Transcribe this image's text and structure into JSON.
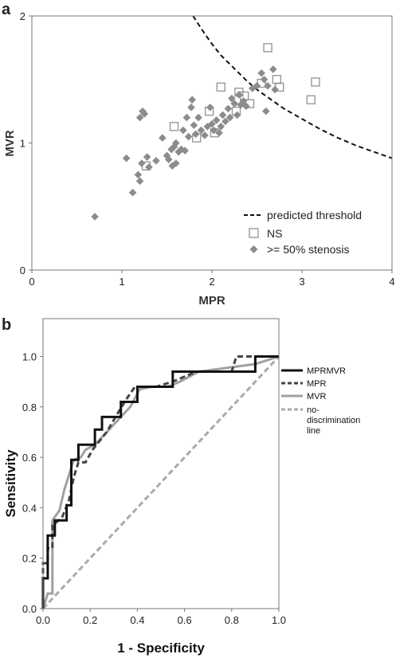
{
  "panel_a": {
    "letter": "a"
  },
  "panel_b": {
    "letter": "b"
  },
  "chart_data": [
    {
      "type": "scatter",
      "title": "",
      "xlabel": "MPR",
      "ylabel": "MVR",
      "xlim": [
        0,
        4
      ],
      "ylim": [
        0,
        2
      ],
      "xticks": [
        "0",
        "1",
        "2",
        "3",
        "4"
      ],
      "yticks": [
        "0",
        "1",
        "2"
      ],
      "grid": false,
      "legend_position": "bottom-right",
      "colors": {
        "ns": "#999999",
        "stenosis": "#8c8c8c",
        "threshold": "#111111"
      },
      "series": [
        {
          "name": "predicted threshold",
          "kind": "dashed-line",
          "points": [
            [
              1.79,
              2.0
            ],
            [
              1.9,
              1.88
            ],
            [
              2.0,
              1.78
            ],
            [
              2.1,
              1.69
            ],
            [
              2.2,
              1.62
            ],
            [
              2.3,
              1.55
            ],
            [
              2.4,
              1.48
            ],
            [
              2.5,
              1.42
            ],
            [
              2.6,
              1.37
            ],
            [
              2.7,
              1.32
            ],
            [
              2.8,
              1.27
            ],
            [
              3.0,
              1.19
            ],
            [
              3.2,
              1.11
            ],
            [
              3.4,
              1.04
            ],
            [
              3.6,
              0.98
            ],
            [
              3.8,
              0.93
            ],
            [
              4.0,
              0.88
            ]
          ]
        },
        {
          "name": "NS",
          "kind": "open-square",
          "points": [
            [
              1.27,
              0.82
            ],
            [
              1.58,
              1.13
            ],
            [
              1.83,
              1.04
            ],
            [
              1.97,
              1.25
            ],
            [
              2.03,
              1.08
            ],
            [
              2.1,
              1.44
            ],
            [
              2.27,
              1.25
            ],
            [
              2.3,
              1.4
            ],
            [
              2.36,
              1.37
            ],
            [
              2.42,
              1.31
            ],
            [
              2.55,
              1.47
            ],
            [
              2.62,
              1.75
            ],
            [
              2.72,
              1.5
            ],
            [
              2.75,
              1.44
            ],
            [
              3.1,
              1.34
            ],
            [
              3.15,
              1.48
            ]
          ]
        },
        {
          "name": ">= 50% stenosis",
          "kind": "filled-diamond",
          "points": [
            [
              0.7,
              0.42
            ],
            [
              1.05,
              0.88
            ],
            [
              1.12,
              0.61
            ],
            [
              1.18,
              0.75
            ],
            [
              1.2,
              0.7
            ],
            [
              1.22,
              0.84
            ],
            [
              1.28,
              0.89
            ],
            [
              1.3,
              0.81
            ],
            [
              1.2,
              1.2
            ],
            [
              1.23,
              1.25
            ],
            [
              1.25,
              1.23
            ],
            [
              1.38,
              0.86
            ],
            [
              1.45,
              1.04
            ],
            [
              1.5,
              0.9
            ],
            [
              1.52,
              0.87
            ],
            [
              1.55,
              0.95
            ],
            [
              1.56,
              0.82
            ],
            [
              1.58,
              0.97
            ],
            [
              1.6,
              1.0
            ],
            [
              1.6,
              0.84
            ],
            [
              1.63,
              0.93
            ],
            [
              1.66,
              0.95
            ],
            [
              1.68,
              1.1
            ],
            [
              1.7,
              0.94
            ],
            [
              1.72,
              1.2
            ],
            [
              1.74,
              1.05
            ],
            [
              1.77,
              1.28
            ],
            [
              1.78,
              1.34
            ],
            [
              1.8,
              1.14
            ],
            [
              1.82,
              1.07
            ],
            [
              1.85,
              1.2
            ],
            [
              1.88,
              1.1
            ],
            [
              1.92,
              1.06
            ],
            [
              1.95,
              1.13
            ],
            [
              1.98,
              1.28
            ],
            [
              2.0,
              1.15
            ],
            [
              2.02,
              1.1
            ],
            [
              2.05,
              1.18
            ],
            [
              2.08,
              1.08
            ],
            [
              2.1,
              1.13
            ],
            [
              2.12,
              1.22
            ],
            [
              2.15,
              1.17
            ],
            [
              2.18,
              1.27
            ],
            [
              2.2,
              1.2
            ],
            [
              2.22,
              1.35
            ],
            [
              2.25,
              1.31
            ],
            [
              2.28,
              1.22
            ],
            [
              2.3,
              1.38
            ],
            [
              2.32,
              1.3
            ],
            [
              2.35,
              1.33
            ],
            [
              2.38,
              1.29
            ],
            [
              2.45,
              1.43
            ],
            [
              2.5,
              1.45
            ],
            [
              2.55,
              1.55
            ],
            [
              2.58,
              1.5
            ],
            [
              2.6,
              1.25
            ],
            [
              2.62,
              1.45
            ],
            [
              2.68,
              1.58
            ],
            [
              2.7,
              1.42
            ]
          ]
        }
      ]
    },
    {
      "type": "line",
      "title": "",
      "xlabel": "1 - Specificity",
      "ylabel": "Sensitivity",
      "xlim": [
        0,
        1
      ],
      "ylim": [
        0,
        1.15
      ],
      "xticks": [
        "0.0",
        "0.2",
        "0.4",
        "0.6",
        "0.8",
        "1.0"
      ],
      "yticks": [
        "0.0",
        "0.2",
        "0.4",
        "0.6",
        "0.8",
        "1.0"
      ],
      "grid": false,
      "legend_position": "right",
      "colors": {
        "MPRMVR": "#111111",
        "MPR": "#444444",
        "MVR": "#a0a0a0",
        "no-discrimination line": "#aaaaaa"
      },
      "series": [
        {
          "name": "MPRMVR",
          "style": "solid",
          "points": [
            [
              0,
              0
            ],
            [
              0,
              0.12
            ],
            [
              0.02,
              0.12
            ],
            [
              0.02,
              0.29
            ],
            [
              0.05,
              0.29
            ],
            [
              0.05,
              0.35
            ],
            [
              0.1,
              0.35
            ],
            [
              0.1,
              0.41
            ],
            [
              0.12,
              0.41
            ],
            [
              0.12,
              0.59
            ],
            [
              0.15,
              0.59
            ],
            [
              0.15,
              0.65
            ],
            [
              0.22,
              0.65
            ],
            [
              0.22,
              0.71
            ],
            [
              0.25,
              0.71
            ],
            [
              0.25,
              0.76
            ],
            [
              0.33,
              0.76
            ],
            [
              0.33,
              0.82
            ],
            [
              0.4,
              0.82
            ],
            [
              0.4,
              0.88
            ],
            [
              0.55,
              0.88
            ],
            [
              0.55,
              0.94
            ],
            [
              0.9,
              0.94
            ],
            [
              0.9,
              1.0
            ],
            [
              1.0,
              1.0
            ]
          ]
        },
        {
          "name": "MPR",
          "style": "dashed",
          "points": [
            [
              0,
              0
            ],
            [
              0,
              0.18
            ],
            [
              0.02,
              0.18
            ],
            [
              0.02,
              0.24
            ],
            [
              0.04,
              0.24
            ],
            [
              0.04,
              0.33
            ],
            [
              0.08,
              0.36
            ],
            [
              0.11,
              0.43
            ],
            [
              0.13,
              0.52
            ],
            [
              0.15,
              0.58
            ],
            [
              0.18,
              0.58
            ],
            [
              0.21,
              0.63
            ],
            [
              0.27,
              0.7
            ],
            [
              0.32,
              0.78
            ],
            [
              0.36,
              0.84
            ],
            [
              0.39,
              0.88
            ],
            [
              0.48,
              0.88
            ],
            [
              0.55,
              0.9
            ],
            [
              0.65,
              0.94
            ],
            [
              0.8,
              0.94
            ],
            [
              0.82,
              1.0
            ],
            [
              1.0,
              1.0
            ]
          ]
        },
        {
          "name": "MVR",
          "style": "solid",
          "points": [
            [
              0,
              0
            ],
            [
              0.02,
              0.06
            ],
            [
              0.04,
              0.06
            ],
            [
              0.04,
              0.35
            ],
            [
              0.07,
              0.39
            ],
            [
              0.09,
              0.47
            ],
            [
              0.11,
              0.53
            ],
            [
              0.13,
              0.59
            ],
            [
              0.16,
              0.6
            ],
            [
              0.18,
              0.63
            ],
            [
              0.22,
              0.65
            ],
            [
              0.26,
              0.69
            ],
            [
              0.29,
              0.72
            ],
            [
              0.33,
              0.76
            ],
            [
              0.37,
              0.8
            ],
            [
              0.41,
              0.87
            ],
            [
              0.46,
              0.88
            ],
            [
              0.53,
              0.88
            ],
            [
              0.58,
              0.9
            ],
            [
              0.66,
              0.94
            ],
            [
              0.9,
              0.97
            ],
            [
              1.0,
              1.0
            ]
          ]
        },
        {
          "name": "no-discrimination line",
          "style": "dashed",
          "points": [
            [
              0,
              0
            ],
            [
              1.0,
              1.0
            ]
          ]
        }
      ]
    }
  ]
}
